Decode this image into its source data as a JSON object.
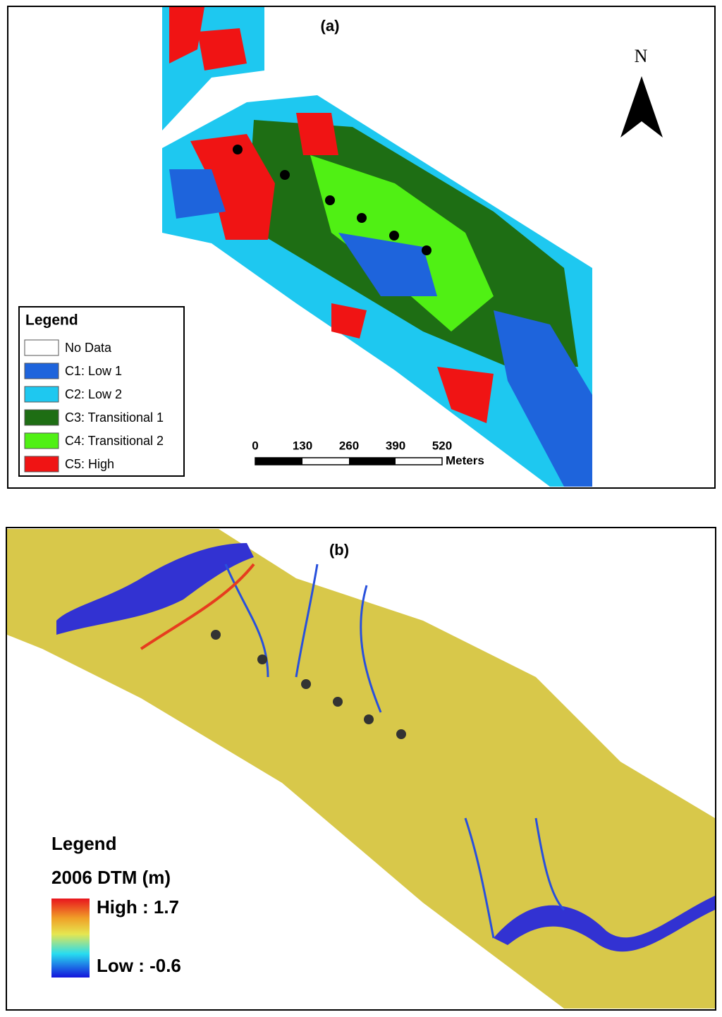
{
  "panel_a": {
    "label": "(a)",
    "north": "N",
    "legend": {
      "title": "Legend",
      "items": [
        {
          "label": "No Data",
          "color": "#ffffff"
        },
        {
          "label": "C1: Low 1",
          "color": "#1e64dc"
        },
        {
          "label": "C2: Low 2",
          "color": "#1ec8f0"
        },
        {
          "label": "C3: Transitional 1",
          "color": "#1e6e14"
        },
        {
          "label": "C4: Transitional 2",
          "color": "#50f014"
        },
        {
          "label": "C5: High",
          "color": "#f01414"
        }
      ]
    },
    "scale_bar": {
      "ticks": [
        "0",
        "130",
        "260",
        "390",
        "520"
      ],
      "unit": "Meters"
    }
  },
  "panel_b": {
    "label": "(b)",
    "legend": {
      "title": "Legend",
      "subtitle": "2006 DTM (m)",
      "high": "High : 1.7",
      "low": "Low : -0.6"
    }
  }
}
